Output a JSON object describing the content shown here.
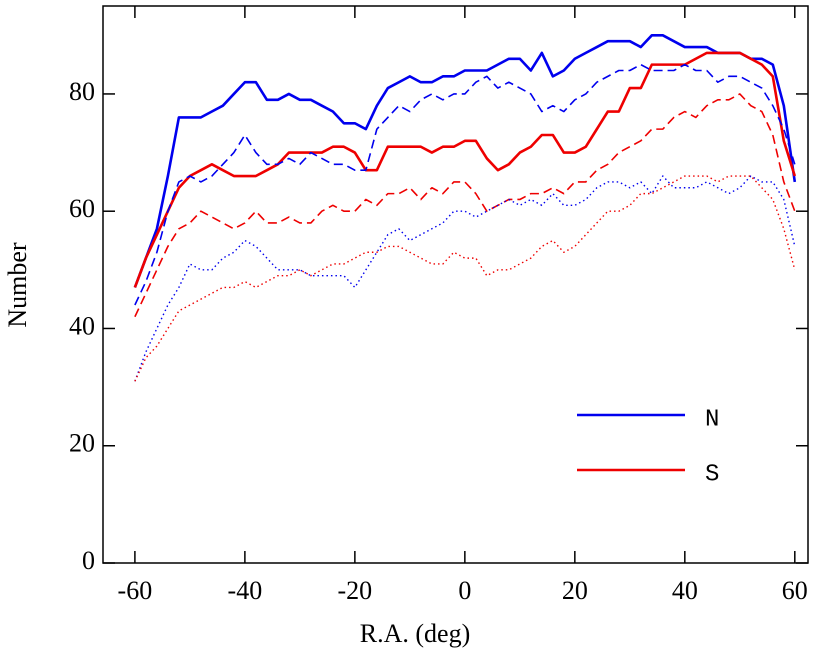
{
  "chart_data": {
    "type": "line",
    "xlabel": "R.A. (deg)",
    "ylabel": "Number",
    "x": [
      -60,
      -58,
      -56,
      -54,
      -52,
      -50,
      -48,
      -46,
      -44,
      -42,
      -40,
      -38,
      -36,
      -34,
      -32,
      -30,
      -28,
      -26,
      -24,
      -22,
      -20,
      -18,
      -16,
      -14,
      -12,
      -10,
      -8,
      -6,
      -4,
      -2,
      0,
      2,
      4,
      6,
      8,
      10,
      12,
      14,
      16,
      18,
      20,
      22,
      24,
      26,
      28,
      30,
      32,
      34,
      36,
      38,
      40,
      42,
      44,
      46,
      48,
      50,
      52,
      54,
      56,
      58,
      60
    ],
    "series": [
      {
        "name": "N",
        "color": "#0000ee",
        "style": "solid",
        "values": [
          47,
          52,
          57,
          66,
          76,
          76,
          76,
          77,
          78,
          80,
          82,
          82,
          79,
          79,
          80,
          79,
          79,
          78,
          77,
          75,
          75,
          74,
          78,
          81,
          82,
          83,
          82,
          82,
          83,
          83,
          84,
          84,
          84,
          85,
          86,
          86,
          84,
          87,
          83,
          84,
          86,
          87,
          88,
          89,
          89,
          89,
          88,
          90,
          90,
          89,
          88,
          88,
          88,
          87,
          87,
          87,
          86,
          86,
          85,
          78,
          65
        ]
      },
      {
        "name": "S",
        "color": "#ee0000",
        "style": "solid",
        "values": [
          47,
          52,
          56,
          60,
          64,
          66,
          67,
          68,
          67,
          66,
          66,
          66,
          67,
          68,
          70,
          70,
          70,
          70,
          71,
          71,
          70,
          67,
          67,
          71,
          71,
          71,
          71,
          70,
          71,
          71,
          72,
          72,
          69,
          67,
          68,
          70,
          71,
          73,
          73,
          70,
          70,
          71,
          74,
          77,
          77,
          81,
          81,
          85,
          85,
          85,
          85,
          86,
          87,
          87,
          87,
          87,
          86,
          85,
          83,
          72,
          66
        ]
      },
      {
        "color": "#0000ee",
        "style": "dashed",
        "values": [
          44,
          48,
          53,
          60,
          65,
          66,
          65,
          66,
          68,
          70,
          73,
          70,
          68,
          68,
          69,
          68,
          70,
          69,
          68,
          68,
          67,
          67,
          74,
          76,
          78,
          77,
          79,
          80,
          79,
          80,
          80,
          82,
          83,
          81,
          82,
          81,
          80,
          77,
          78,
          77,
          79,
          80,
          82,
          83,
          84,
          84,
          85,
          84,
          84,
          84,
          85,
          84,
          84,
          82,
          83,
          83,
          82,
          81,
          78,
          74,
          68
        ]
      },
      {
        "color": "#ee0000",
        "style": "dashed",
        "values": [
          42,
          46,
          50,
          54,
          57,
          58,
          60,
          59,
          58,
          57,
          58,
          60,
          58,
          58,
          59,
          58,
          58,
          60,
          61,
          60,
          60,
          62,
          61,
          63,
          63,
          64,
          62,
          64,
          63,
          65,
          65,
          63,
          60,
          61,
          62,
          62,
          63,
          63,
          64,
          63,
          65,
          65,
          67,
          68,
          70,
          71,
          72,
          74,
          74,
          76,
          77,
          76,
          78,
          79,
          79,
          80,
          78,
          77,
          73,
          65,
          60
        ]
      },
      {
        "color": "#0000ee",
        "style": "dotted",
        "values": [
          31,
          36,
          40,
          44,
          47,
          51,
          50,
          50,
          52,
          53,
          55,
          54,
          52,
          50,
          50,
          50,
          49,
          49,
          49,
          49,
          47,
          50,
          53,
          56,
          57,
          55,
          56,
          57,
          58,
          60,
          60,
          59,
          60,
          61,
          62,
          61,
          62,
          61,
          63,
          61,
          61,
          62,
          64,
          65,
          65,
          64,
          65,
          63,
          66,
          64,
          64,
          64,
          65,
          64,
          63,
          64,
          66,
          65,
          65,
          62,
          54
        ]
      },
      {
        "color": "#ee0000",
        "style": "dotted",
        "values": [
          31,
          35,
          37,
          40,
          43,
          44,
          45,
          46,
          47,
          47,
          48,
          47,
          48,
          49,
          49,
          50,
          49,
          50,
          51,
          51,
          52,
          53,
          53,
          54,
          54,
          53,
          52,
          51,
          51,
          53,
          52,
          52,
          49,
          50,
          50,
          51,
          52,
          54,
          55,
          53,
          54,
          56,
          58,
          60,
          60,
          61,
          63,
          63,
          64,
          65,
          66,
          66,
          66,
          65,
          66,
          66,
          66,
          64,
          62,
          57,
          50
        ]
      }
    ],
    "xlim": [
      -65.8,
      62.4
    ],
    "xticks": [
      -60,
      -40,
      -20,
      0,
      20,
      40,
      60
    ],
    "ylim": [
      0,
      95
    ],
    "yticks": [
      0,
      20,
      40,
      60,
      80
    ],
    "legend": "lower right"
  }
}
